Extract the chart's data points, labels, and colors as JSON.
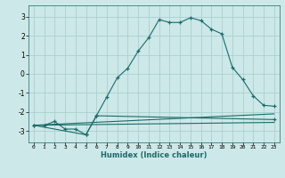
{
  "title": "",
  "xlabel": "Humidex (Indice chaleur)",
  "background_color": "#cde8e8",
  "grid_color": "#aacfcf",
  "line_color": "#1a6b6b",
  "xlim": [
    -0.5,
    23.5
  ],
  "ylim": [
    -3.6,
    3.6
  ],
  "yticks": [
    -3,
    -2,
    -1,
    0,
    1,
    2,
    3
  ],
  "xticks": [
    0,
    1,
    2,
    3,
    4,
    5,
    6,
    7,
    8,
    9,
    10,
    11,
    12,
    13,
    14,
    15,
    16,
    17,
    18,
    19,
    20,
    21,
    22,
    23
  ],
  "line1_x": [
    0,
    1,
    2,
    3,
    4,
    5,
    6,
    7,
    8,
    9,
    10,
    11,
    12,
    13,
    14,
    15,
    16,
    17,
    18,
    19,
    20,
    21,
    22,
    23
  ],
  "line1_y": [
    -2.7,
    -2.7,
    -2.5,
    -2.9,
    -2.9,
    -3.2,
    -2.2,
    -1.2,
    -0.2,
    0.3,
    1.2,
    1.9,
    2.85,
    2.7,
    2.7,
    2.95,
    2.8,
    2.35,
    2.1,
    0.35,
    -0.3,
    -1.15,
    -1.65,
    -1.7
  ],
  "line2_x": [
    0,
    5,
    6,
    23
  ],
  "line2_y": [
    -2.7,
    -3.2,
    -2.2,
    -2.4
  ],
  "line3_x": [
    0,
    23
  ],
  "line3_y": [
    -2.7,
    -2.1
  ],
  "line4_x": [
    0,
    23
  ],
  "line4_y": [
    -2.7,
    -2.55
  ]
}
